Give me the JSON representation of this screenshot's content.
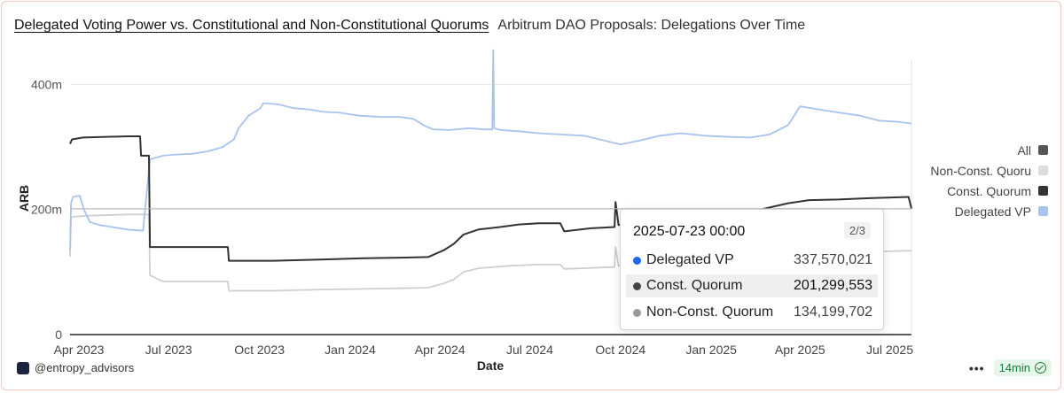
{
  "header": {
    "title": "Delegated Voting Power vs. Constitutional and Non-Constitutional Quorums",
    "subtitle": "Arbitrum DAO Proposals: Delegations Over Time"
  },
  "footer": {
    "handle": "@entropy_advisors",
    "refresh": "14min",
    "menu": "•••"
  },
  "legend": [
    {
      "label": "All",
      "color": "#555555"
    },
    {
      "label": "Non-Const. Quoru",
      "color": "#dddddd"
    },
    {
      "label": "Const. Quorum",
      "color": "#333333"
    },
    {
      "label": "Delegated VP",
      "color": "#aac4f0"
    }
  ],
  "tooltip": {
    "date": "2025-07-23 00:00",
    "page": "2/3",
    "rows": [
      {
        "name": "Delegated VP",
        "value": "337,570,021",
        "color": "#1a66ff",
        "highlight": false
      },
      {
        "name": "Const. Quorum",
        "value": "201,299,553",
        "color": "#444444",
        "highlight": true
      },
      {
        "name": "Non-Const. Quorum",
        "value": "134,199,702",
        "color": "#999999",
        "highlight": false
      }
    ]
  },
  "chart_data": {
    "type": "line",
    "xlabel": "Date",
    "ylabel": "ARB",
    "ylim": [
      0,
      450000000
    ],
    "xlim": [
      "2023-03-23",
      "2025-07-23"
    ],
    "yticks": [
      {
        "value": 0,
        "label": "0"
      },
      {
        "value": 200000000,
        "label": "200m"
      },
      {
        "value": 400000000,
        "label": "400m"
      }
    ],
    "xticks": [
      {
        "date": "2023-04-01",
        "label": "Apr 2023"
      },
      {
        "date": "2023-07-01",
        "label": "Jul 2023"
      },
      {
        "date": "2023-10-01",
        "label": "Oct 2023"
      },
      {
        "date": "2024-01-01",
        "label": "Jan 2024"
      },
      {
        "date": "2024-04-01",
        "label": "Apr 2024"
      },
      {
        "date": "2024-07-01",
        "label": "Jul 2024"
      },
      {
        "date": "2024-10-01",
        "label": "Oct 2024"
      },
      {
        "date": "2025-01-01",
        "label": "Jan 2025"
      },
      {
        "date": "2025-04-01",
        "label": "Apr 2025"
      },
      {
        "date": "2025-07-01",
        "label": "Jul 2025"
      }
    ],
    "series": [
      {
        "name": "Delegated VP",
        "color": "#a9c3ee",
        "points": [
          [
            "2023-03-23",
            135000000
          ],
          [
            "2023-03-24",
            210000000
          ],
          [
            "2023-03-26",
            220000000
          ],
          [
            "2023-04-02",
            222000000
          ],
          [
            "2023-04-06",
            200000000
          ],
          [
            "2023-04-12",
            180000000
          ],
          [
            "2023-04-22",
            175000000
          ],
          [
            "2023-05-05",
            172000000
          ],
          [
            "2023-05-20",
            168000000
          ],
          [
            "2023-06-05",
            166000000
          ],
          [
            "2023-06-12",
            280000000
          ],
          [
            "2023-06-25",
            286000000
          ],
          [
            "2023-07-10",
            288000000
          ],
          [
            "2023-07-25",
            289000000
          ],
          [
            "2023-08-10",
            293000000
          ],
          [
            "2023-08-25",
            300000000
          ],
          [
            "2023-09-05",
            312000000
          ],
          [
            "2023-09-10",
            330000000
          ],
          [
            "2023-09-20",
            350000000
          ],
          [
            "2023-10-02",
            362000000
          ],
          [
            "2023-10-05",
            370000000
          ],
          [
            "2023-10-20",
            368000000
          ],
          [
            "2023-11-05",
            362000000
          ],
          [
            "2023-11-20",
            360000000
          ],
          [
            "2023-12-05",
            356000000
          ],
          [
            "2023-12-20",
            355000000
          ],
          [
            "2024-01-10",
            350000000
          ],
          [
            "2024-02-01",
            348000000
          ],
          [
            "2024-02-20",
            348000000
          ],
          [
            "2024-03-05",
            345000000
          ],
          [
            "2024-03-15",
            335000000
          ],
          [
            "2024-03-25",
            328000000
          ],
          [
            "2024-04-10",
            327000000
          ],
          [
            "2024-05-01",
            330000000
          ],
          [
            "2024-05-15",
            328000000
          ],
          [
            "2024-05-24",
            328000000
          ],
          [
            "2024-05-25",
            455000000
          ],
          [
            "2024-05-26",
            330000000
          ],
          [
            "2024-06-01",
            327000000
          ],
          [
            "2024-06-20",
            325000000
          ],
          [
            "2024-07-10",
            322000000
          ],
          [
            "2024-08-01",
            320000000
          ],
          [
            "2024-08-25",
            318000000
          ],
          [
            "2024-09-15",
            310000000
          ],
          [
            "2024-10-01",
            304000000
          ],
          [
            "2024-10-20",
            310000000
          ],
          [
            "2024-11-10",
            318000000
          ],
          [
            "2024-12-01",
            322000000
          ],
          [
            "2024-12-25",
            318000000
          ],
          [
            "2025-01-20",
            316000000
          ],
          [
            "2025-02-10",
            315000000
          ],
          [
            "2025-03-01",
            320000000
          ],
          [
            "2025-03-20",
            335000000
          ],
          [
            "2025-04-01",
            365000000
          ],
          [
            "2025-04-20",
            360000000
          ],
          [
            "2025-05-10",
            355000000
          ],
          [
            "2025-06-01",
            350000000
          ],
          [
            "2025-06-20",
            342000000
          ],
          [
            "2025-07-10",
            340000000
          ],
          [
            "2025-07-23",
            337570021
          ]
        ]
      },
      {
        "name": "Const. Quorum",
        "color": "#333333",
        "points": [
          [
            "2023-03-23",
            305000000
          ],
          [
            "2023-03-25",
            312000000
          ],
          [
            "2023-04-05",
            315000000
          ],
          [
            "2023-05-20",
            317000000
          ],
          [
            "2023-06-02",
            317000000
          ],
          [
            "2023-06-03",
            286000000
          ],
          [
            "2023-06-11",
            286000000
          ],
          [
            "2023-06-12",
            140000000
          ],
          [
            "2023-08-30",
            140000000
          ],
          [
            "2023-08-31",
            118000000
          ],
          [
            "2023-10-15",
            118000000
          ],
          [
            "2023-12-01",
            120000000
          ],
          [
            "2024-01-15",
            122000000
          ],
          [
            "2024-02-20",
            123000000
          ],
          [
            "2024-03-20",
            124000000
          ],
          [
            "2024-04-05",
            135000000
          ],
          [
            "2024-04-15",
            145000000
          ],
          [
            "2024-04-25",
            160000000
          ],
          [
            "2024-05-10",
            168000000
          ],
          [
            "2024-06-01",
            172000000
          ],
          [
            "2024-06-20",
            176000000
          ],
          [
            "2024-07-10",
            178000000
          ],
          [
            "2024-08-01",
            178000000
          ],
          [
            "2024-08-05",
            165000000
          ],
          [
            "2024-09-01",
            170000000
          ],
          [
            "2024-09-25",
            172000000
          ],
          [
            "2024-09-26",
            212000000
          ],
          [
            "2024-09-29",
            175000000
          ],
          [
            "2024-10-20",
            178000000
          ],
          [
            "2024-11-15",
            180000000
          ],
          [
            "2024-12-20",
            185000000
          ],
          [
            "2025-01-20",
            190000000
          ],
          [
            "2025-02-20",
            200000000
          ],
          [
            "2025-03-20",
            210000000
          ],
          [
            "2025-04-10",
            215000000
          ],
          [
            "2025-05-10",
            216000000
          ],
          [
            "2025-06-10",
            218000000
          ],
          [
            "2025-07-20",
            220000000
          ],
          [
            "2025-07-23",
            201299553
          ]
        ]
      },
      {
        "name": "Non-Const. Quorum",
        "color": "#cfcfcf",
        "points": [
          [
            "2023-03-23",
            125000000
          ],
          [
            "2023-03-24",
            188000000
          ],
          [
            "2023-04-10",
            190000000
          ],
          [
            "2023-05-20",
            192000000
          ],
          [
            "2023-06-11",
            192000000
          ],
          [
            "2023-06-12",
            95000000
          ],
          [
            "2023-06-25",
            85000000
          ],
          [
            "2023-08-30",
            85000000
          ],
          [
            "2023-08-31",
            70000000
          ],
          [
            "2023-10-15",
            70000000
          ],
          [
            "2023-12-01",
            72000000
          ],
          [
            "2024-01-15",
            73000000
          ],
          [
            "2024-02-20",
            74000000
          ],
          [
            "2024-03-20",
            75000000
          ],
          [
            "2024-04-05",
            82000000
          ],
          [
            "2024-04-15",
            88000000
          ],
          [
            "2024-04-25",
            100000000
          ],
          [
            "2024-05-10",
            106000000
          ],
          [
            "2024-06-10",
            110000000
          ],
          [
            "2024-07-10",
            112000000
          ],
          [
            "2024-08-01",
            112000000
          ],
          [
            "2024-08-05",
            105000000
          ],
          [
            "2024-09-25",
            108000000
          ],
          [
            "2024-09-26",
            140000000
          ],
          [
            "2024-09-29",
            110000000
          ],
          [
            "2024-11-15",
            112000000
          ],
          [
            "2025-01-20",
            118000000
          ],
          [
            "2025-03-20",
            128000000
          ],
          [
            "2025-05-10",
            131000000
          ],
          [
            "2025-07-23",
            134199702
          ]
        ]
      }
    ],
    "cursor_date": "2025-07-23"
  }
}
